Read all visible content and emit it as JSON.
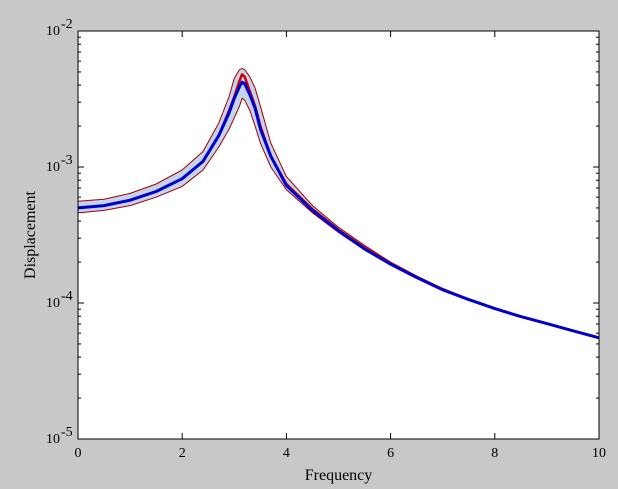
{
  "chart_data": {
    "type": "line",
    "title": "",
    "xlabel": "Frequency",
    "ylabel": "Displacement",
    "xlim": [
      0,
      10
    ],
    "ylim": [
      1e-05,
      0.01
    ],
    "yscale": "log",
    "grid": false,
    "legend": "none",
    "x_ticks": [
      {
        "value": 0,
        "label": "0"
      },
      {
        "value": 2,
        "label": "2"
      },
      {
        "value": 4,
        "label": "4"
      },
      {
        "value": 6,
        "label": "6"
      },
      {
        "value": 8,
        "label": "8"
      },
      {
        "value": 10,
        "label": "10"
      }
    ],
    "y_ticks": [
      {
        "value": 1e-05,
        "base": "10",
        "exp": "-5"
      },
      {
        "value": 0.0001,
        "base": "10",
        "exp": "-4"
      },
      {
        "value": 0.001,
        "base": "10",
        "exp": "-3"
      },
      {
        "value": 0.01,
        "base": "10",
        "exp": "-2"
      }
    ],
    "x": [
      0,
      0.5,
      1.0,
      1.5,
      2.0,
      2.4,
      2.7,
      2.9,
      3.0,
      3.1,
      3.15,
      3.2,
      3.3,
      3.4,
      3.5,
      3.7,
      4.0,
      4.5,
      5.0,
      5.5,
      6.0,
      6.5,
      7.0,
      7.5,
      8.0,
      8.5,
      9.0,
      9.5,
      10.0
    ],
    "band": {
      "upper": [
        0.00056,
        0.00058,
        0.00064,
        0.00075,
        0.00095,
        0.0013,
        0.0021,
        0.0033,
        0.0045,
        0.0052,
        0.0053,
        0.0052,
        0.0046,
        0.0038,
        0.0028,
        0.0015,
        0.00085,
        0.00052,
        0.00036,
        0.000265,
        0.0002,
        0.000158,
        0.000128,
        0.000107,
        9.2e-05,
        8e-05,
        7.1e-05,
        6.3e-05,
        5.6e-05
      ],
      "lower": [
        0.00046,
        0.00048,
        0.00052,
        0.0006,
        0.00072,
        0.00095,
        0.0014,
        0.0019,
        0.0023,
        0.0028,
        0.0032,
        0.0031,
        0.0026,
        0.002,
        0.0015,
        0.001,
        0.00068,
        0.00046,
        0.00033,
        0.000245,
        0.00019,
        0.000152,
        0.000124,
        0.000105,
        9e-05,
        7.9e-05,
        7e-05,
        6.2e-05,
        5.5e-05
      ],
      "fill_color": "#c6d3e8",
      "edge_color": "#a00000"
    },
    "series": [
      {
        "color": "#d00000",
        "values": [
          0.0005,
          0.00052,
          0.00057,
          0.00066,
          0.00082,
          0.0011,
          0.0017,
          0.0026,
          0.0033,
          0.0043,
          0.0048,
          0.0046,
          0.0036,
          0.0028,
          0.002,
          0.0012,
          0.00075,
          0.00049,
          0.000345,
          0.000255,
          0.000195,
          0.000155,
          0.000126,
          0.000106,
          9.1e-05,
          7.95e-05,
          7.05e-05,
          6.25e-05,
          5.55e-05
        ]
      },
      {
        "color": "#0000cc",
        "values": [
          0.0005,
          0.00052,
          0.00057,
          0.00066,
          0.00082,
          0.0011,
          0.0017,
          0.0025,
          0.0032,
          0.0039,
          0.0042,
          0.0041,
          0.0034,
          0.0027,
          0.0019,
          0.0012,
          0.00073,
          0.00048,
          0.00034,
          0.00025,
          0.000193,
          0.000154,
          0.000125,
          0.000106,
          9.1e-05,
          7.95e-05,
          7.05e-05,
          6.25e-05,
          5.55e-05
        ]
      }
    ]
  }
}
